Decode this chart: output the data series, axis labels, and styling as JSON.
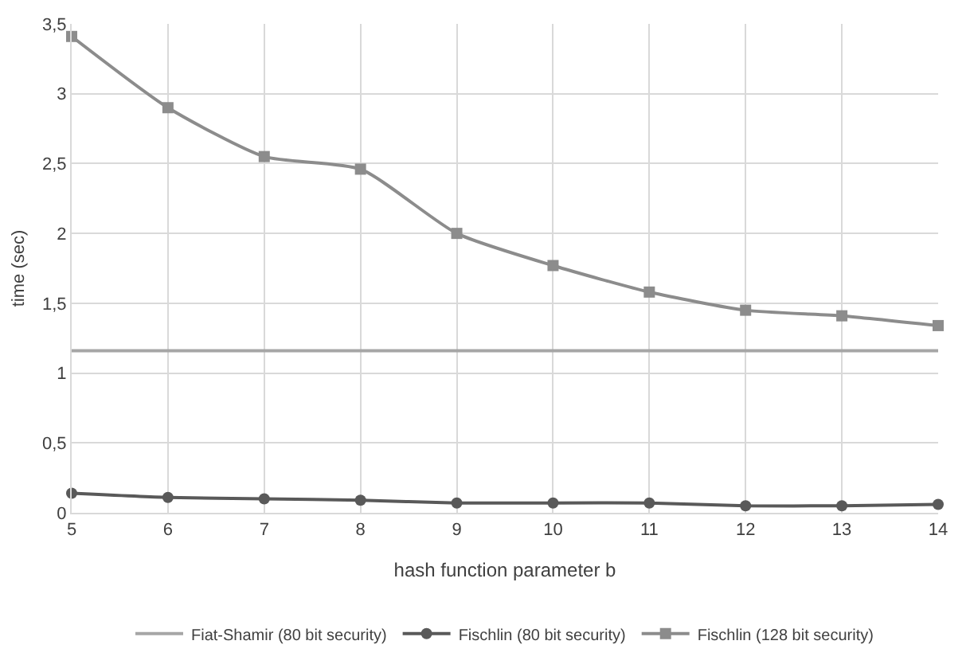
{
  "chart_data": {
    "type": "line",
    "xlabel": "hash function parameter b",
    "ylabel": "time (sec)",
    "x": [
      5,
      6,
      7,
      8,
      9,
      10,
      11,
      12,
      13,
      14
    ],
    "series": [
      {
        "name": "Fiat-Shamir (80 bit security)",
        "color": "#a6a6a6",
        "marker": "none",
        "values": [
          1.16,
          1.16,
          1.16,
          1.16,
          1.16,
          1.16,
          1.16,
          1.16,
          1.16,
          1.16
        ]
      },
      {
        "name": "Fischlin (80 bit security)",
        "color": "#595959",
        "marker": "circle",
        "values": [
          0.14,
          0.11,
          0.1,
          0.09,
          0.07,
          0.07,
          0.07,
          0.05,
          0.05,
          0.06
        ]
      },
      {
        "name": "Fischlin (128 bit security)",
        "color": "#8c8c8c",
        "marker": "square",
        "values": [
          3.41,
          2.9,
          2.55,
          2.46,
          2.0,
          1.77,
          1.58,
          1.45,
          1.41,
          1.34
        ]
      }
    ],
    "xlim": [
      5,
      14
    ],
    "xticks": [
      5,
      6,
      7,
      8,
      9,
      10,
      11,
      12,
      13,
      14
    ],
    "ylim": [
      0,
      3.5
    ],
    "yticks": [
      0,
      {
        "value": 0.5,
        "label": "0,5"
      },
      1,
      {
        "value": 1.5,
        "label": "1,5"
      },
      2,
      {
        "value": 2.5,
        "label": "2,5"
      },
      3,
      {
        "value": 3.5,
        "label": "3,5"
      }
    ],
    "grid": true,
    "legend": "bottom",
    "line_style": "solid"
  }
}
